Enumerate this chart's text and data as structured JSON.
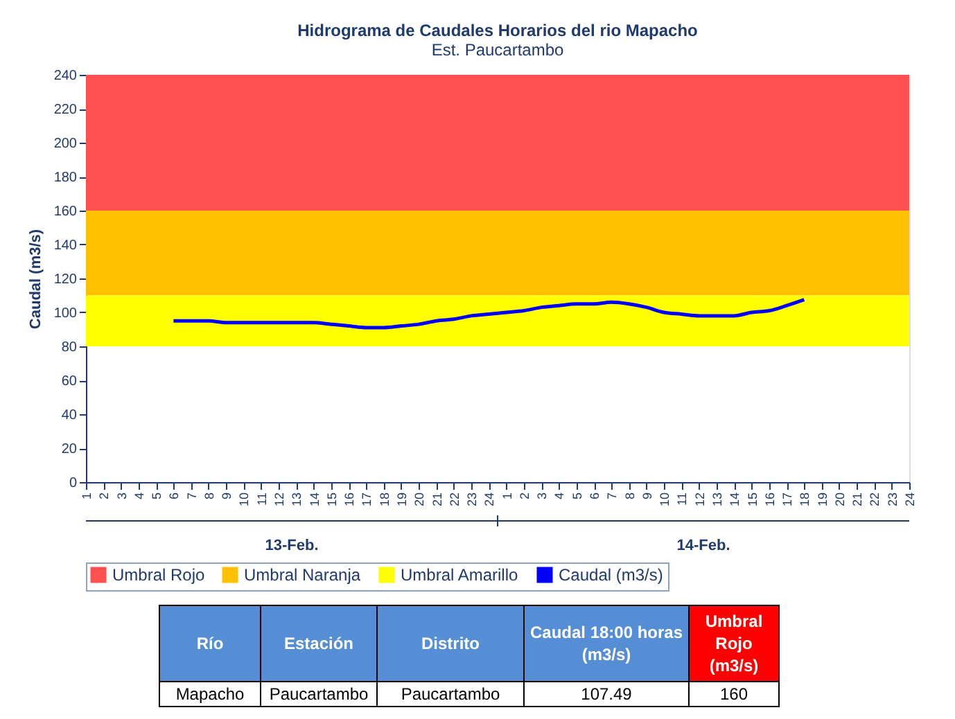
{
  "chart_data": {
    "type": "line",
    "title": "Hidrograma de Caudales Horarios del rio Mapacho",
    "subtitle": "Est. Paucartambo",
    "ylabel": "Caudal  (m3/s)",
    "categories": [
      "1",
      "2",
      "3",
      "4",
      "5",
      "6",
      "7",
      "8",
      "9",
      "10",
      "11",
      "12",
      "13",
      "14",
      "15",
      "16",
      "17",
      "18",
      "19",
      "20",
      "21",
      "22",
      "23",
      "24",
      "1",
      "2",
      "3",
      "4",
      "5",
      "6",
      "7",
      "8",
      "9",
      "10",
      "11",
      "12",
      "13",
      "14",
      "15",
      "16",
      "17",
      "18",
      "19",
      "20",
      "21",
      "22",
      "23",
      "24"
    ],
    "series": [
      {
        "name": "Caudal (m3/s)",
        "color": "#0000ff",
        "values": [
          null,
          null,
          null,
          null,
          null,
          95,
          95,
          95,
          94,
          94,
          94,
          94,
          94,
          94,
          93,
          92,
          91,
          91,
          92,
          93,
          95,
          96,
          98,
          99,
          100,
          101,
          103,
          104,
          105,
          105,
          106,
          105,
          103,
          100,
          99,
          98,
          98,
          98,
          100,
          101,
          104,
          107.49,
          null,
          null,
          null,
          null,
          null,
          null
        ]
      }
    ],
    "bands": [
      {
        "axis": "y",
        "from": 160,
        "to": 240,
        "label": "Umbral Rojo",
        "color": "#ff5050"
      },
      {
        "axis": "y",
        "from": 110,
        "to": 160,
        "label": "Umbral Naranja",
        "color": "#ffc000"
      },
      {
        "axis": "y",
        "from": 80,
        "to": 110,
        "label": "Umbral Amarillo",
        "color": "#ffff00"
      }
    ],
    "ylim": [
      0,
      240
    ],
    "yticks": [
      0,
      20,
      40,
      60,
      80,
      100,
      120,
      140,
      160,
      180,
      200,
      220,
      240
    ],
    "grid": false,
    "legend": "bottom",
    "line_style": "solid",
    "marker": "none",
    "annotations": [
      "13-Feb.",
      "14-Feb.",
      "Río",
      "Estación",
      "Distrito",
      "Caudal 18:00 horas\n(m3/s)",
      "Umbral\nRojo\n(m3/s)",
      "Mapacho",
      "Paucartambo",
      "Paucartambo",
      "107.49",
      "160"
    ]
  }
}
